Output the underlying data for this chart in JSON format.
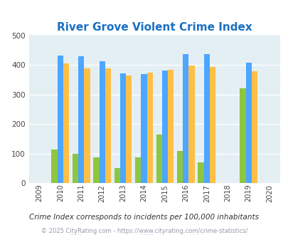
{
  "title": "River Grove Violent Crime Index",
  "years": [
    2009,
    2010,
    2011,
    2012,
    2013,
    2014,
    2015,
    2016,
    2017,
    2018,
    2019,
    2020
  ],
  "data_years": [
    2010,
    2011,
    2012,
    2013,
    2014,
    2015,
    2016,
    2017,
    2019
  ],
  "river_grove": [
    115,
    100,
    88,
    52,
    88,
    165,
    108,
    70,
    322
  ],
  "illinois": [
    432,
    428,
    413,
    372,
    368,
    382,
    437,
    437,
    407
  ],
  "national": [
    404,
    387,
    387,
    365,
    374,
    383,
    397,
    394,
    379
  ],
  "color_river_grove": "#8DC63F",
  "color_illinois": "#4DA6FF",
  "color_national": "#FFBF47",
  "color_background": "#E4EFF4",
  "ylim": [
    0,
    500
  ],
  "yticks": [
    0,
    100,
    200,
    300,
    400,
    500
  ],
  "bar_width": 0.28,
  "footnote": "Crime Index corresponds to incidents per 100,000 inhabitants",
  "copyright": "© 2025 CityRating.com - https://www.cityrating.com/crime-statistics/"
}
